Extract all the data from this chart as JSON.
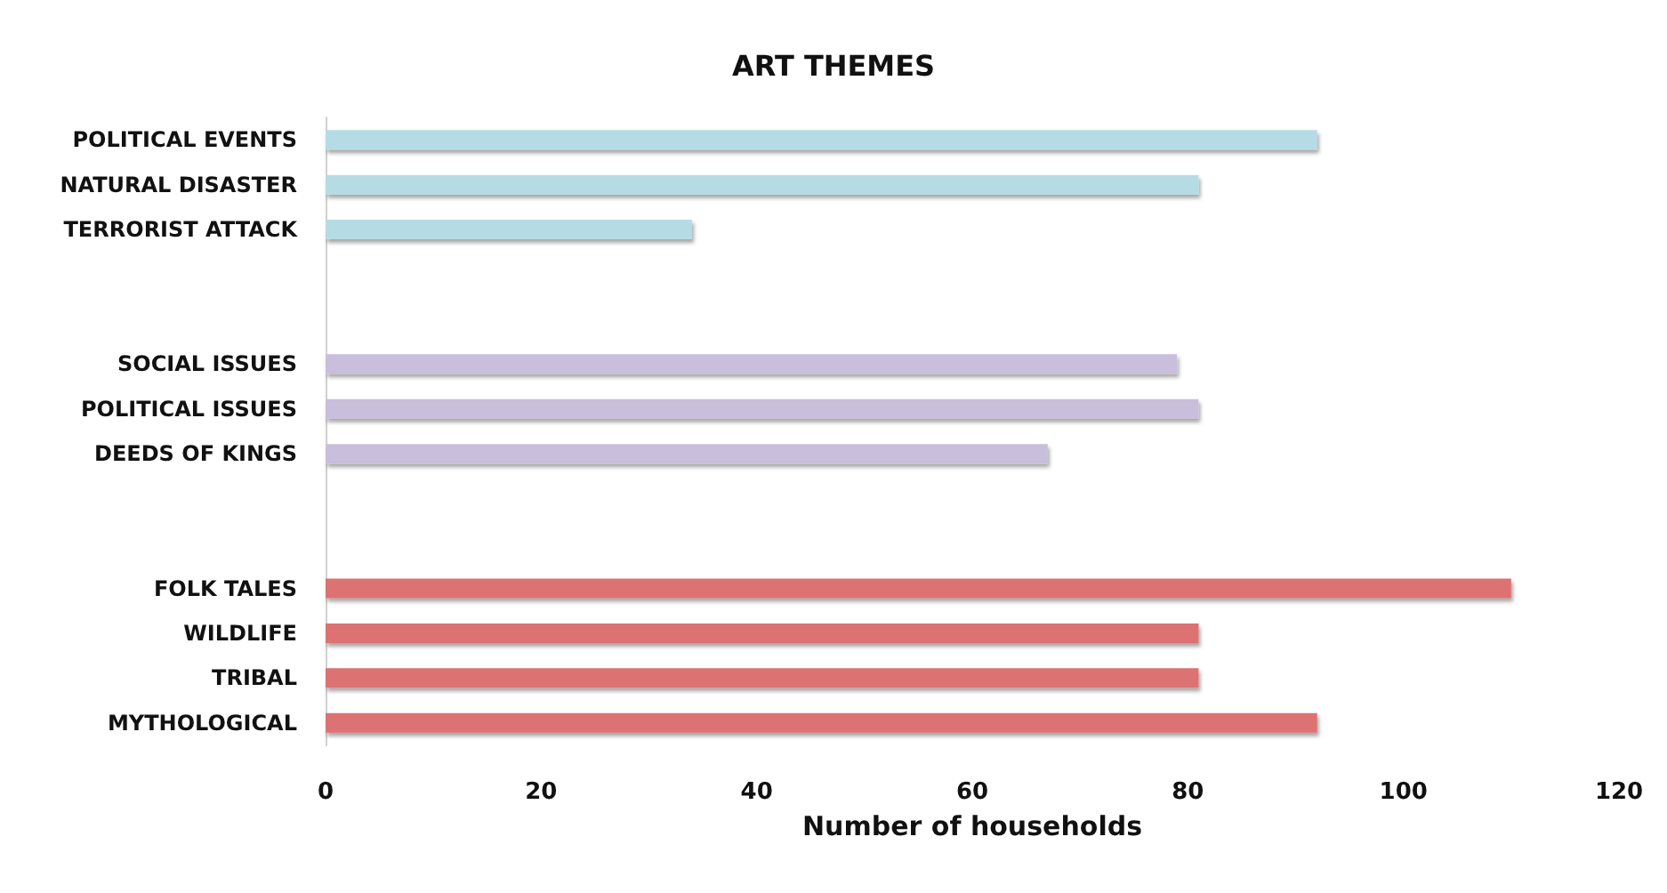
{
  "chart_data": {
    "type": "bar",
    "orientation": "horizontal",
    "title": "ART THEMES",
    "xlabel": "Number of households",
    "categories": [
      "POLITICAL EVENTS",
      "NATURAL DISASTER",
      "TERRORIST ATTACK",
      null,
      null,
      "SOCIAL ISSUES",
      "POLITICAL ISSUES",
      "DEEDS OF KINGS",
      null,
      null,
      "FOLK TALES",
      "WILDLIFE",
      "TRIBAL",
      "MYTHOLOGICAL"
    ],
    "values": [
      92,
      81,
      34,
      null,
      null,
      79,
      81,
      67,
      null,
      null,
      110,
      81,
      81,
      92
    ],
    "colors": [
      "#b5dce5",
      "#b5dce5",
      "#b5dce5",
      null,
      null,
      "#c9bedb",
      "#c9bedb",
      "#c9bedb",
      null,
      null,
      "#dd7273",
      "#dd7273",
      "#dd7273",
      "#dd7273"
    ],
    "xlim": [
      0,
      120
    ],
    "xticks": [
      0,
      20,
      40,
      60,
      80,
      100,
      120
    ],
    "grid": false
  }
}
